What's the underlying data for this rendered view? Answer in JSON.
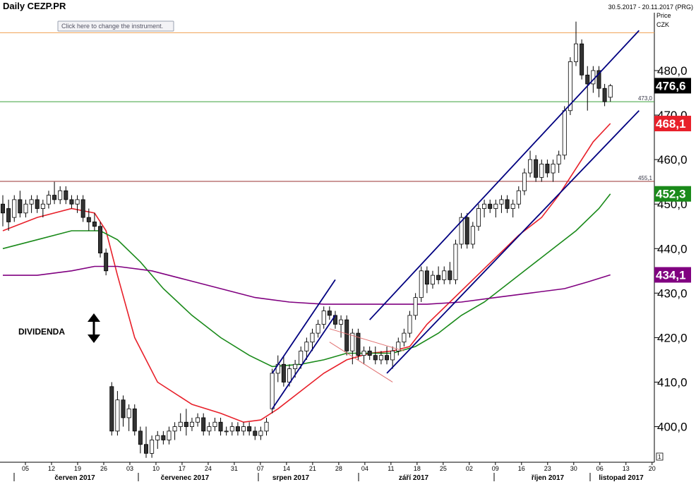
{
  "header": {
    "title": "Daily CEZP.PR",
    "date_range": "30.5.2017 - 20.11.2017 (PRG)",
    "instrument_hint": "Click here to change the instrument."
  },
  "axis": {
    "price_label": "Price",
    "currency_label": "CZK",
    "pane_number": "1"
  },
  "chart_data": {
    "type": "candlestick",
    "title": "Daily CEZP.PR",
    "ylim": [
      392,
      493
    ],
    "grid": false,
    "yticks": [
      {
        "value": 400,
        "label": "400,0"
      },
      {
        "value": 410,
        "label": "410,0"
      },
      {
        "value": 420,
        "label": "420,0"
      },
      {
        "value": 430,
        "label": "430,0"
      },
      {
        "value": 440,
        "label": "440,0"
      },
      {
        "value": 450,
        "label": "450,0"
      },
      {
        "value": 460,
        "label": "460,0"
      },
      {
        "value": 470,
        "label": "470,0"
      },
      {
        "value": 480,
        "label": "480,0"
      }
    ],
    "xticks": [
      "05",
      "12",
      "19",
      "26",
      "03",
      "10",
      "17",
      "24",
      "31",
      "07",
      "14",
      "21",
      "28",
      "04",
      "11",
      "18",
      "25",
      "02",
      "09",
      "16",
      "23",
      "30",
      "06",
      "13",
      "20"
    ],
    "months": [
      "červen 2017",
      "červenec 2017",
      "srpen 2017",
      "září 2017",
      "říjen 2017",
      "listopad 2017"
    ],
    "candles": [
      {
        "o": 450,
        "h": 452,
        "l": 445,
        "c": 448
      },
      {
        "o": 449,
        "h": 451,
        "l": 444,
        "c": 446
      },
      {
        "o": 447,
        "h": 452,
        "l": 446,
        "c": 451
      },
      {
        "o": 451,
        "h": 453,
        "l": 447,
        "c": 448
      },
      {
        "o": 448,
        "h": 451,
        "l": 447,
        "c": 450
      },
      {
        "o": 450,
        "h": 452,
        "l": 448,
        "c": 451
      },
      {
        "o": 451,
        "h": 452,
        "l": 448,
        "c": 449
      },
      {
        "o": 449,
        "h": 451,
        "l": 447,
        "c": 450
      },
      {
        "o": 450,
        "h": 453,
        "l": 449,
        "c": 452
      },
      {
        "o": 452,
        "h": 455,
        "l": 450,
        "c": 451
      },
      {
        "o": 451,
        "h": 454,
        "l": 450,
        "c": 453
      },
      {
        "o": 453,
        "h": 454,
        "l": 450,
        "c": 451
      },
      {
        "o": 451,
        "h": 452,
        "l": 449,
        "c": 450
      },
      {
        "o": 450,
        "h": 452,
        "l": 448,
        "c": 451
      },
      {
        "o": 451,
        "h": 452,
        "l": 446,
        "c": 447
      },
      {
        "o": 447,
        "h": 449,
        "l": 444,
        "c": 446
      },
      {
        "o": 446,
        "h": 448,
        "l": 444,
        "c": 445
      },
      {
        "o": 445,
        "h": 446,
        "l": 438,
        "c": 439
      },
      {
        "o": 439,
        "h": 440,
        "l": 434,
        "c": 435
      },
      {
        "o": 409,
        "h": 410,
        "l": 398,
        "c": 399
      },
      {
        "o": 399,
        "h": 408,
        "l": 398,
        "c": 406
      },
      {
        "o": 406,
        "h": 407,
        "l": 400,
        "c": 402
      },
      {
        "o": 402,
        "h": 405,
        "l": 399,
        "c": 404
      },
      {
        "o": 404,
        "h": 405,
        "l": 398,
        "c": 399
      },
      {
        "o": 399,
        "h": 400,
        "l": 394,
        "c": 396
      },
      {
        "o": 396,
        "h": 400,
        "l": 393,
        "c": 394
      },
      {
        "o": 394,
        "h": 398,
        "l": 393,
        "c": 397
      },
      {
        "o": 397,
        "h": 399,
        "l": 395,
        "c": 398
      },
      {
        "o": 398,
        "h": 399,
        "l": 396,
        "c": 397
      },
      {
        "o": 397,
        "h": 400,
        "l": 396,
        "c": 399
      },
      {
        "o": 399,
        "h": 401,
        "l": 397,
        "c": 400
      },
      {
        "o": 400,
        "h": 403,
        "l": 399,
        "c": 401
      },
      {
        "o": 401,
        "h": 404,
        "l": 398,
        "c": 400
      },
      {
        "o": 400,
        "h": 402,
        "l": 399,
        "c": 401
      },
      {
        "o": 401,
        "h": 403,
        "l": 400,
        "c": 402
      },
      {
        "o": 402,
        "h": 403,
        "l": 398,
        "c": 399
      },
      {
        "o": 399,
        "h": 401,
        "l": 398,
        "c": 400
      },
      {
        "o": 400,
        "h": 402,
        "l": 399,
        "c": 401
      },
      {
        "o": 401,
        "h": 402,
        "l": 398,
        "c": 399
      },
      {
        "o": 399,
        "h": 400,
        "l": 398,
        "c": 399
      },
      {
        "o": 399,
        "h": 401,
        "l": 398,
        "c": 400
      },
      {
        "o": 400,
        "h": 401,
        "l": 398,
        "c": 399
      },
      {
        "o": 399,
        "h": 401,
        "l": 398,
        "c": 400
      },
      {
        "o": 400,
        "h": 401,
        "l": 398,
        "c": 399
      },
      {
        "o": 399,
        "h": 400,
        "l": 397,
        "c": 398
      },
      {
        "o": 398,
        "h": 400,
        "l": 397,
        "c": 399
      },
      {
        "o": 399,
        "h": 402,
        "l": 398,
        "c": 401
      },
      {
        "o": 404,
        "h": 413,
        "l": 403,
        "c": 412
      },
      {
        "o": 412,
        "h": 416,
        "l": 410,
        "c": 414
      },
      {
        "o": 414,
        "h": 416,
        "l": 409,
        "c": 410
      },
      {
        "o": 410,
        "h": 414,
        "l": 409,
        "c": 413
      },
      {
        "o": 413,
        "h": 415,
        "l": 411,
        "c": 414
      },
      {
        "o": 414,
        "h": 418,
        "l": 413,
        "c": 417
      },
      {
        "o": 417,
        "h": 420,
        "l": 415,
        "c": 419
      },
      {
        "o": 419,
        "h": 422,
        "l": 417,
        "c": 421
      },
      {
        "o": 421,
        "h": 424,
        "l": 420,
        "c": 423
      },
      {
        "o": 423,
        "h": 427,
        "l": 422,
        "c": 426
      },
      {
        "o": 426,
        "h": 427,
        "l": 424,
        "c": 425
      },
      {
        "o": 425,
        "h": 426,
        "l": 422,
        "c": 423
      },
      {
        "o": 423,
        "h": 425,
        "l": 420,
        "c": 424
      },
      {
        "o": 424,
        "h": 425,
        "l": 416,
        "c": 417
      },
      {
        "o": 417,
        "h": 422,
        "l": 414,
        "c": 421
      },
      {
        "o": 421,
        "h": 422,
        "l": 415,
        "c": 416
      },
      {
        "o": 416,
        "h": 418,
        "l": 414,
        "c": 417
      },
      {
        "o": 417,
        "h": 418,
        "l": 415,
        "c": 416
      },
      {
        "o": 416,
        "h": 418,
        "l": 414,
        "c": 415
      },
      {
        "o": 415,
        "h": 417,
        "l": 414,
        "c": 416
      },
      {
        "o": 416,
        "h": 418,
        "l": 414,
        "c": 415
      },
      {
        "o": 415,
        "h": 418,
        "l": 413,
        "c": 417
      },
      {
        "o": 417,
        "h": 420,
        "l": 416,
        "c": 419
      },
      {
        "o": 419,
        "h": 422,
        "l": 418,
        "c": 421
      },
      {
        "o": 421,
        "h": 426,
        "l": 420,
        "c": 425
      },
      {
        "o": 425,
        "h": 430,
        "l": 424,
        "c": 429
      },
      {
        "o": 429,
        "h": 436,
        "l": 428,
        "c": 435
      },
      {
        "o": 435,
        "h": 436,
        "l": 430,
        "c": 432
      },
      {
        "o": 432,
        "h": 435,
        "l": 431,
        "c": 434
      },
      {
        "o": 434,
        "h": 436,
        "l": 432,
        "c": 433
      },
      {
        "o": 433,
        "h": 436,
        "l": 432,
        "c": 435
      },
      {
        "o": 435,
        "h": 437,
        "l": 432,
        "c": 433
      },
      {
        "o": 433,
        "h": 442,
        "l": 432,
        "c": 441
      },
      {
        "o": 441,
        "h": 448,
        "l": 440,
        "c": 447
      },
      {
        "o": 447,
        "h": 448,
        "l": 440,
        "c": 441
      },
      {
        "o": 441,
        "h": 446,
        "l": 440,
        "c": 445
      },
      {
        "o": 445,
        "h": 450,
        "l": 444,
        "c": 449
      },
      {
        "o": 449,
        "h": 451,
        "l": 447,
        "c": 450
      },
      {
        "o": 450,
        "h": 451,
        "l": 448,
        "c": 449
      },
      {
        "o": 449,
        "h": 451,
        "l": 447,
        "c": 450
      },
      {
        "o": 450,
        "h": 452,
        "l": 448,
        "c": 451
      },
      {
        "o": 451,
        "h": 452,
        "l": 448,
        "c": 449
      },
      {
        "o": 449,
        "h": 451,
        "l": 447,
        "c": 450
      },
      {
        "o": 450,
        "h": 454,
        "l": 449,
        "c": 453
      },
      {
        "o": 453,
        "h": 458,
        "l": 452,
        "c": 457
      },
      {
        "o": 457,
        "h": 462,
        "l": 456,
        "c": 460
      },
      {
        "o": 460,
        "h": 461,
        "l": 455,
        "c": 456
      },
      {
        "o": 456,
        "h": 460,
        "l": 455,
        "c": 459
      },
      {
        "o": 459,
        "h": 460,
        "l": 456,
        "c": 457
      },
      {
        "o": 457,
        "h": 460,
        "l": 455,
        "c": 459
      },
      {
        "o": 459,
        "h": 462,
        "l": 457,
        "c": 461
      },
      {
        "o": 461,
        "h": 472,
        "l": 460,
        "c": 471
      },
      {
        "o": 471,
        "h": 483,
        "l": 470,
        "c": 482
      },
      {
        "o": 482,
        "h": 491,
        "l": 481,
        "c": 486
      },
      {
        "o": 486,
        "h": 487,
        "l": 478,
        "c": 479
      },
      {
        "o": 479,
        "h": 481,
        "l": 471,
        "c": 477
      },
      {
        "o": 477,
        "h": 481,
        "l": 475,
        "c": 480
      },
      {
        "o": 480,
        "h": 481,
        "l": 474,
        "c": 476
      },
      {
        "o": 476,
        "h": 477,
        "l": 472,
        "c": 473
      },
      {
        "o": 474,
        "h": 477,
        "l": 473,
        "c": 476.6
      }
    ],
    "moving_averages": [
      {
        "color": "#e8202a",
        "last": 468.1,
        "label": "468,1",
        "points": [
          [
            0,
            444
          ],
          [
            6,
            447
          ],
          [
            12,
            449
          ],
          [
            16,
            448
          ],
          [
            18,
            444
          ],
          [
            20,
            434
          ],
          [
            23,
            420
          ],
          [
            27,
            410
          ],
          [
            33,
            405
          ],
          [
            38,
            403
          ],
          [
            42,
            401
          ],
          [
            45,
            401.5
          ],
          [
            48,
            404
          ],
          [
            52,
            408
          ],
          [
            56,
            412
          ],
          [
            60,
            415
          ],
          [
            64,
            416.5
          ],
          [
            68,
            417
          ],
          [
            71,
            418
          ],
          [
            74,
            423
          ],
          [
            78,
            428
          ],
          [
            82,
            433
          ],
          [
            86,
            438
          ],
          [
            90,
            443
          ],
          [
            94,
            447
          ],
          [
            97,
            452
          ],
          [
            100,
            458
          ],
          [
            103,
            464
          ],
          [
            106,
            468.1
          ]
        ]
      },
      {
        "color": "#1a8a1a",
        "last": 452.3,
        "label": "452,3",
        "points": [
          [
            0,
            440
          ],
          [
            6,
            442
          ],
          [
            12,
            444
          ],
          [
            17,
            444
          ],
          [
            20,
            442
          ],
          [
            24,
            437
          ],
          [
            28,
            431
          ],
          [
            33,
            425
          ],
          [
            38,
            420
          ],
          [
            43,
            416
          ],
          [
            47,
            413.5
          ],
          [
            52,
            414
          ],
          [
            56,
            415
          ],
          [
            60,
            416.5
          ],
          [
            64,
            416.5
          ],
          [
            68,
            416.5
          ],
          [
            72,
            418
          ],
          [
            76,
            421
          ],
          [
            80,
            425
          ],
          [
            84,
            428
          ],
          [
            88,
            432
          ],
          [
            92,
            436
          ],
          [
            96,
            440
          ],
          [
            100,
            444
          ],
          [
            104,
            449
          ],
          [
            106,
            452.3
          ]
        ]
      },
      {
        "color": "#800080",
        "last": 434.1,
        "label": "434,1",
        "points": [
          [
            0,
            434
          ],
          [
            6,
            434
          ],
          [
            12,
            435
          ],
          [
            16,
            436
          ],
          [
            20,
            436
          ],
          [
            26,
            435
          ],
          [
            32,
            433
          ],
          [
            38,
            431
          ],
          [
            44,
            429
          ],
          [
            50,
            428
          ],
          [
            56,
            427.5
          ],
          [
            62,
            427.5
          ],
          [
            68,
            427.5
          ],
          [
            74,
            427.5
          ],
          [
            80,
            428
          ],
          [
            86,
            429
          ],
          [
            92,
            430
          ],
          [
            98,
            431
          ],
          [
            102,
            432.5
          ],
          [
            106,
            434.1
          ]
        ]
      }
    ],
    "horizontal_lines": [
      {
        "value": 488.5,
        "color": "#f0a050",
        "label": ""
      },
      {
        "value": 473.0,
        "color": "#3aa03a",
        "label": "473,0"
      },
      {
        "value": 455.1,
        "color": "#993333",
        "label": "455,1"
      }
    ],
    "trend_lines": [
      {
        "color": "#000080",
        "from": [
          47,
          412
        ],
        "to": [
          58,
          433
        ]
      },
      {
        "color": "#000080",
        "from": [
          47,
          404
        ],
        "to": [
          58,
          425
        ]
      },
      {
        "color": "#000080",
        "from": [
          64,
          424
        ],
        "to": [
          111,
          489
        ]
      },
      {
        "color": "#000080",
        "from": [
          67,
          412
        ],
        "to": [
          111,
          471
        ]
      },
      {
        "color": "#e07070",
        "from": [
          57,
          422
        ],
        "to": [
          70,
          417
        ]
      },
      {
        "color": "#e07070",
        "from": [
          57,
          419
        ],
        "to": [
          68,
          410
        ]
      }
    ],
    "last_price": {
      "value": 476.6,
      "label": "476,6"
    },
    "annotations": {
      "dividend": "DIVIDENDA"
    }
  }
}
